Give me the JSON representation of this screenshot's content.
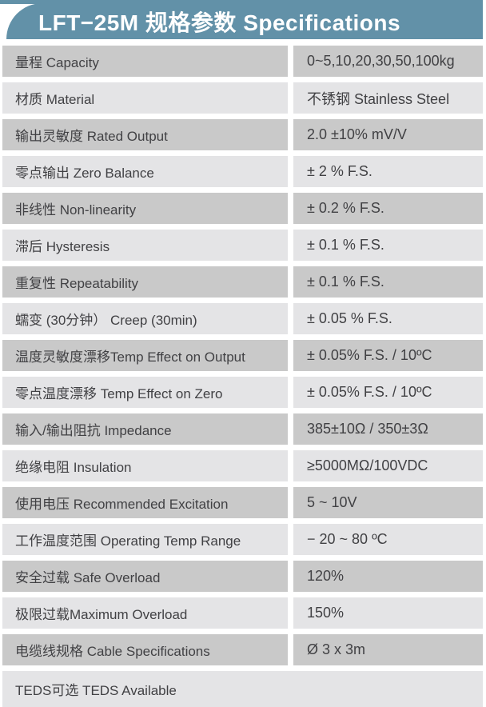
{
  "header": {
    "title": "LFT−25M 规格参数 Specifications"
  },
  "colors": {
    "accent": "#6291a8",
    "title-text": "#ffffff",
    "row-dark": "#c9c9c9",
    "row-light": "#e4e4e6",
    "body-text": "#414144"
  },
  "table": {
    "rows": [
      {
        "label": "量程 Capacity",
        "value": "0~5,10,20,30,50,100kg"
      },
      {
        "label": "材质 Material",
        "value": "不锈钢 Stainless Steel"
      },
      {
        "label": "输出灵敏度 Rated Output",
        "value": "2.0 ±10% mV/V"
      },
      {
        "label": "零点输出  Zero Balance",
        "value": "± 2 % F.S."
      },
      {
        "label": "非线性 Non-linearity",
        "value": "± 0.2 % F.S."
      },
      {
        "label": "滞后 Hysteresis",
        "value": "± 0.1 % F.S."
      },
      {
        "label": "重复性 Repeatability",
        "value": "± 0.1 % F.S."
      },
      {
        "label": "蠕变 (30分钟） Creep (30min)",
        "value": "± 0.05 % F.S."
      },
      {
        "label": "温度灵敏度漂移Temp Effect on Output",
        "value": "± 0.05% F.S. / 10ºC"
      },
      {
        "label": "零点温度漂移 Temp Effect on Zero",
        "value": "± 0.05% F.S. / 10ºC"
      },
      {
        "label": "输入/输出阻抗 Impedance",
        "value": "385±10Ω / 350±3Ω"
      },
      {
        "label": "绝缘电阻  Insulation",
        "value": "≥5000MΩ/100VDC"
      },
      {
        "label": "使用电压 Recommended Excitation",
        "value": "5 ~ 10V"
      },
      {
        "label": "工作温度范围 Operating Temp Range",
        "value": "− 20 ~ 80 ºC"
      },
      {
        "label": "安全过载 Safe Overload",
        "value": "120%"
      },
      {
        "label": "极限过载Maximum Overload",
        "value": "150%"
      },
      {
        "label": "电缆线规格 Cable Specifications",
        "value": "Ø 3 x 3m"
      }
    ],
    "footer": {
      "label": "TEDS可选 TEDS Available"
    }
  }
}
